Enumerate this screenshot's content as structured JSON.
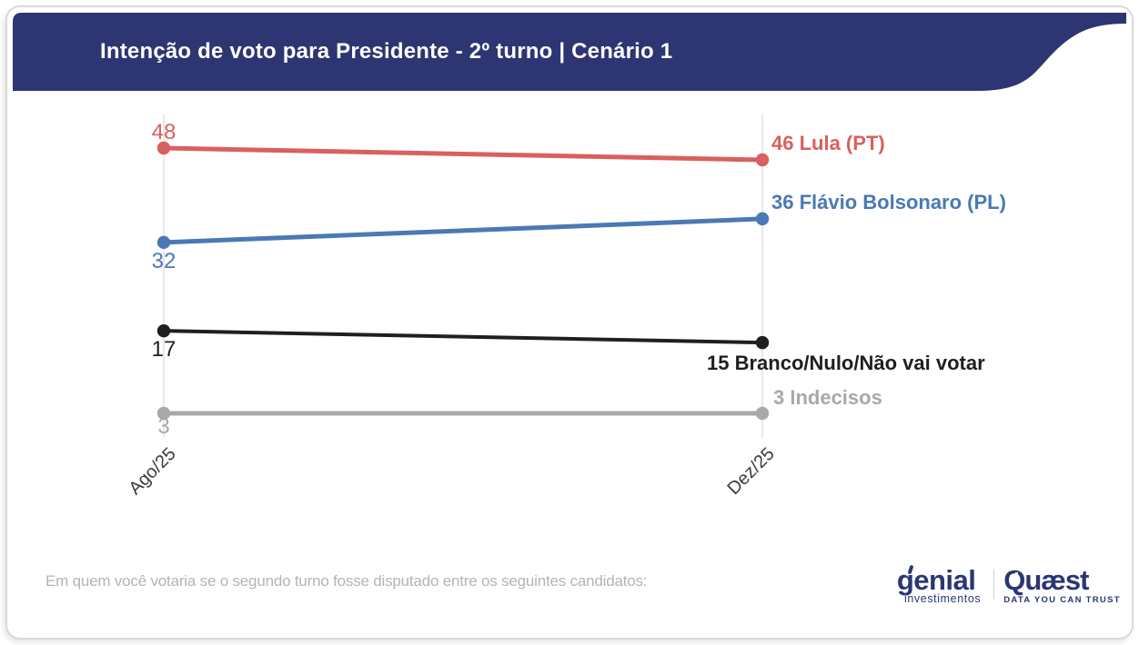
{
  "theme": {
    "navy": "#2d3572",
    "grid_color": "#e9e9e9",
    "tick_color": "#3c3c3c"
  },
  "header": {
    "title": "Intenção de voto para Presidente - 2º turno | Cenário 1"
  },
  "chart_data": {
    "type": "line",
    "categories": [
      "Ago/25",
      "Dez/25"
    ],
    "series": [
      {
        "name": "Lula (PT)",
        "values": [
          48,
          46
        ],
        "color": "#d9605e"
      },
      {
        "name": "Flávio Bolsonaro (PL)",
        "values": [
          32,
          36
        ],
        "color": "#4a79b5"
      },
      {
        "name": "Branco/Nulo/Não vai votar",
        "values": [
          17,
          15
        ],
        "color": "#1f1f1f"
      },
      {
        "name": "Indecisos",
        "values": [
          3,
          3
        ],
        "color": "#a9a9a9"
      }
    ],
    "title": "Intenção de voto para Presidente - 2º turno | Cenário 1",
    "xlabel": "",
    "ylabel": "",
    "ylim": [
      0,
      55
    ],
    "grid": "vertical-category-lines",
    "legend": "inline-right-labels",
    "value_label_format_left": "first value next to left point",
    "value_label_format_right": "second value + series name next to right point"
  },
  "footer": {
    "question": "Em quem você votaria se o segundo turno fosse disputado entre os seguintes candidatos:"
  },
  "logos": {
    "genial": {
      "name": "genial",
      "subtitle": "investimentos"
    },
    "quaest": {
      "name": "Quæst",
      "subtitle": "DATA YOU CAN TRUST"
    }
  }
}
